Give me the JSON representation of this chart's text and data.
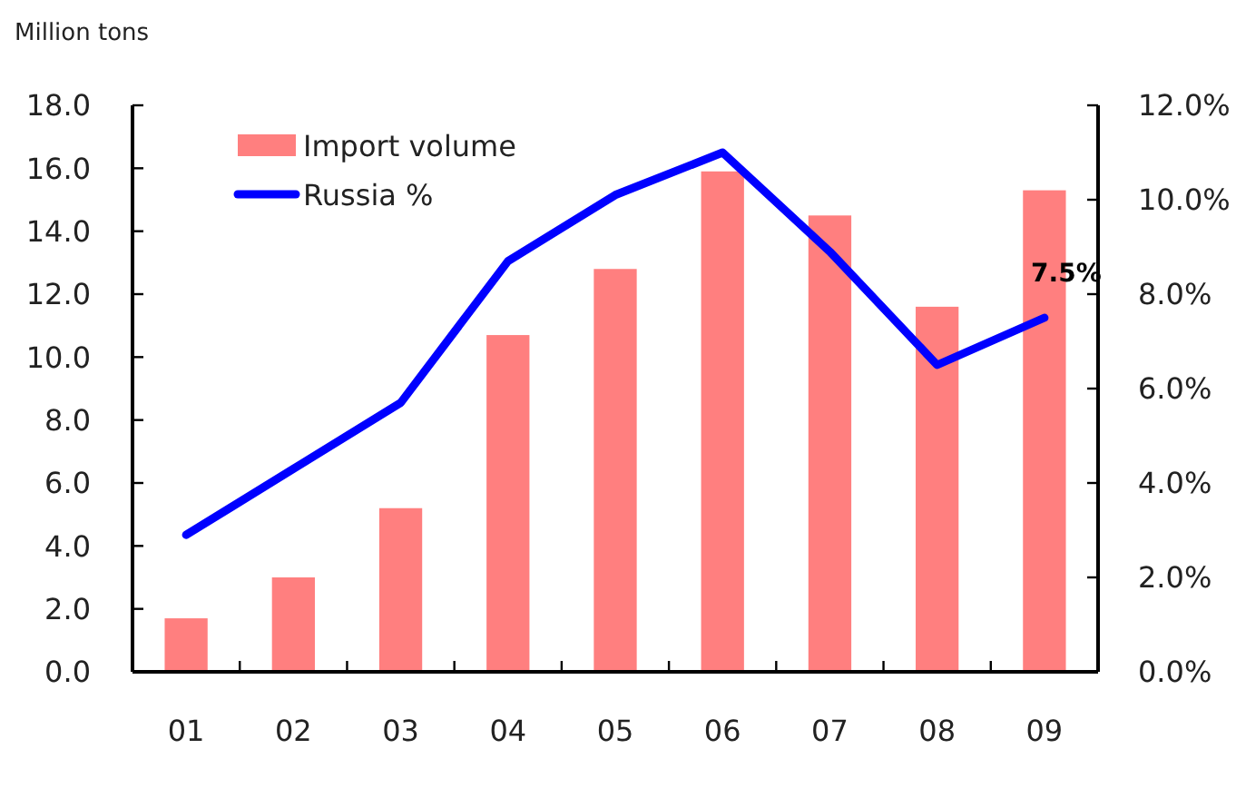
{
  "chart_data": {
    "type": "bar",
    "ylabel": "Million tons",
    "categories": [
      "01",
      "02",
      "03",
      "04",
      "05",
      "06",
      "07",
      "08",
      "09"
    ],
    "series": [
      {
        "name": "Import volume",
        "color": "#ff7f7f",
        "values": [
          1.7,
          3.0,
          5.2,
          10.7,
          12.8,
          15.9,
          14.5,
          11.6,
          15.3
        ]
      },
      {
        "name": "Russia %",
        "type": "line",
        "axis": "y2",
        "color": "#0000ff",
        "values": [
          2.9,
          4.3,
          5.7,
          8.7,
          10.1,
          11.0,
          8.9,
          6.5,
          7.5
        ],
        "value_labels": [
          null,
          null,
          null,
          null,
          null,
          null,
          null,
          null,
          "7.5%"
        ]
      }
    ],
    "ylim": [
      0,
      18
    ],
    "yticks": [
      {
        "value": 0,
        "label": "0.0"
      },
      {
        "value": 2,
        "label": "2.0"
      },
      {
        "value": 4,
        "label": "4.0"
      },
      {
        "value": 6,
        "label": "6.0"
      },
      {
        "value": 8,
        "label": "8.0"
      },
      {
        "value": 10,
        "label": "10.0"
      },
      {
        "value": 12,
        "label": "12.0"
      },
      {
        "value": 14,
        "label": "14.0"
      },
      {
        "value": 16,
        "label": "16.0"
      },
      {
        "value": 18,
        "label": "18.0"
      }
    ],
    "y2lim": [
      0,
      12
    ],
    "y2ticks": [
      {
        "value": 0,
        "label": "0.0%"
      },
      {
        "value": 2,
        "label": "2.0%"
      },
      {
        "value": 4,
        "label": "4.0%"
      },
      {
        "value": 6,
        "label": "6.0%"
      },
      {
        "value": 8,
        "label": "8.0%"
      },
      {
        "value": 10,
        "label": "10.0%"
      },
      {
        "value": 12,
        "label": "12.0%"
      }
    ],
    "legend": "top left"
  }
}
